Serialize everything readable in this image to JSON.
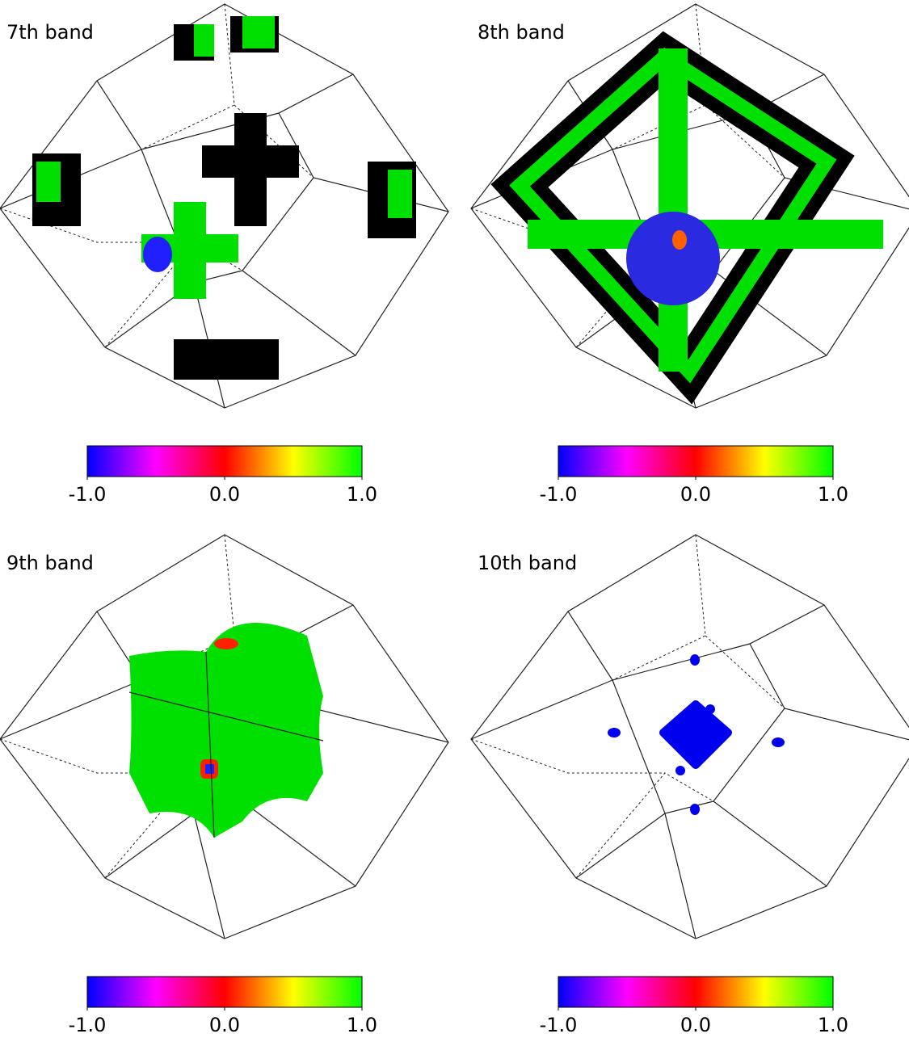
{
  "panels": [
    {
      "title": "7th band",
      "colorbar": {
        "ticks": [
          {
            "value": -1,
            "label": "-1.0"
          },
          {
            "value": 0,
            "label": "0.0"
          },
          {
            "value": 1,
            "label": "1.0"
          }
        ],
        "range": [
          -1,
          1
        ]
      }
    },
    {
      "title": "8th band",
      "colorbar": {
        "ticks": [
          {
            "value": -1,
            "label": "-1.0"
          },
          {
            "value": 0,
            "label": "0.0"
          },
          {
            "value": 1,
            "label": "1.0"
          }
        ],
        "range": [
          -1,
          1
        ]
      }
    },
    {
      "title": "9th band",
      "colorbar": {
        "ticks": [
          {
            "value": -1,
            "label": "-1.0"
          },
          {
            "value": 0,
            "label": "0.0"
          },
          {
            "value": 1,
            "label": "1.0"
          }
        ],
        "range": [
          -1,
          1
        ]
      }
    },
    {
      "title": "10th band",
      "colorbar": {
        "ticks": [
          {
            "value": -1,
            "label": "-1.0"
          },
          {
            "value": 0,
            "label": "0.0"
          },
          {
            "value": 1,
            "label": "1.0"
          }
        ],
        "range": [
          -1,
          1
        ]
      }
    }
  ]
}
